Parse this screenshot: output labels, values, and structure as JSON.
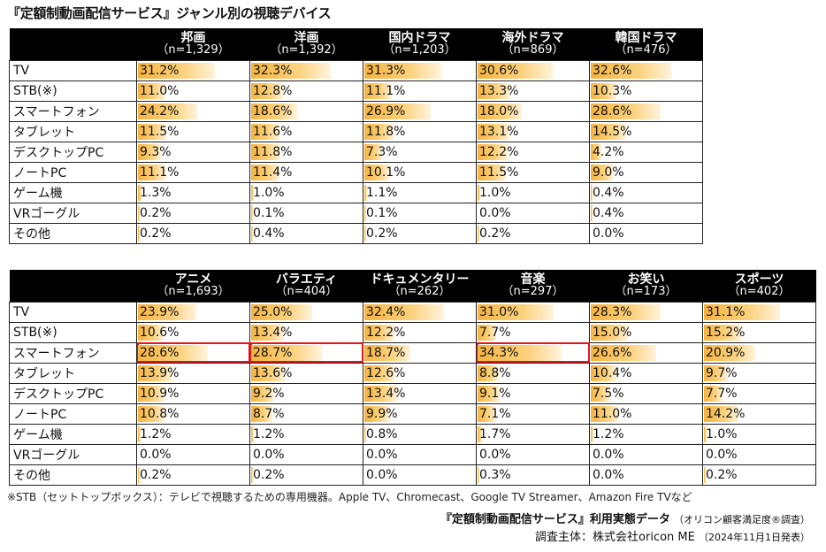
{
  "title": "『定額制動画配信サービス』ジャンル別の視聴デバイス",
  "chart_data": [
    {
      "type": "table",
      "columns": [
        {
          "name": "邦画",
          "n": "（n=1,329）"
        },
        {
          "name": "洋画",
          "n": "（n=1,392）"
        },
        {
          "name": "国内ドラマ",
          "n": "（n=1,203）"
        },
        {
          "name": "海外ドラマ",
          "n": "（n=869）"
        },
        {
          "name": "韓国ドラマ",
          "n": "（n=476）"
        }
      ],
      "rows": [
        {
          "label": "TV",
          "values": [
            31.2,
            32.3,
            31.3,
            30.6,
            32.6
          ],
          "labels": [
            "31.2%",
            "32.3%",
            "31.3%",
            "30.6%",
            "32.6%"
          ]
        },
        {
          "label": "STB(※)",
          "values": [
            11.0,
            12.8,
            11.1,
            13.3,
            10.3
          ],
          "labels": [
            "11.0%",
            "12.8%",
            "11.1%",
            "13.3%",
            "10.3%"
          ]
        },
        {
          "label": "スマートフォン",
          "values": [
            24.2,
            18.6,
            26.9,
            18.0,
            28.6
          ],
          "labels": [
            "24.2%",
            "18.6%",
            "26.9%",
            "18.0%",
            "28.6%"
          ]
        },
        {
          "label": "タブレット",
          "values": [
            11.5,
            11.6,
            11.8,
            13.1,
            14.5
          ],
          "labels": [
            "11.5%",
            "11.6%",
            "11.8%",
            "13.1%",
            "14.5%"
          ]
        },
        {
          "label": "デスクトップPC",
          "values": [
            9.3,
            11.8,
            7.3,
            12.2,
            4.2
          ],
          "labels": [
            "9.3%",
            "11.8%",
            "7.3%",
            "12.2%",
            "4.2%"
          ]
        },
        {
          "label": "ノートPC",
          "values": [
            11.1,
            11.4,
            10.1,
            11.5,
            9.0
          ],
          "labels": [
            "11.1%",
            "11.4%",
            "10.1%",
            "11.5%",
            "9.0%"
          ]
        },
        {
          "label": "ゲーム機",
          "values": [
            1.3,
            1.0,
            1.1,
            1.0,
            0.4
          ],
          "labels": [
            "1.3%",
            "1.0%",
            "1.1%",
            "1.0%",
            "0.4%"
          ]
        },
        {
          "label": "VRゴーグル",
          "values": [
            0.2,
            0.1,
            0.1,
            0.0,
            0.4
          ],
          "labels": [
            "0.2%",
            "0.1%",
            "0.1%",
            "0.0%",
            "0.4%"
          ]
        },
        {
          "label": "その他",
          "values": [
            0.2,
            0.4,
            0.2,
            0.2,
            0.0
          ],
          "labels": [
            "0.2%",
            "0.4%",
            "0.2%",
            "0.2%",
            "0.0%"
          ]
        }
      ],
      "highlighted": []
    },
    {
      "type": "table",
      "columns": [
        {
          "name": "アニメ",
          "n": "（n=1,693）"
        },
        {
          "name": "バラエティ",
          "n": "（n=404）"
        },
        {
          "name": "ドキュメンタリー",
          "n": "（n=262）"
        },
        {
          "name": "音楽",
          "n": "（n=297）"
        },
        {
          "name": "お笑い",
          "n": "（n=173）"
        },
        {
          "name": "スポーツ",
          "n": "（n=402）"
        }
      ],
      "rows": [
        {
          "label": "TV",
          "values": [
            23.9,
            25.0,
            32.4,
            31.0,
            28.3,
            31.1
          ],
          "labels": [
            "23.9%",
            "25.0%",
            "32.4%",
            "31.0%",
            "28.3%",
            "31.1%"
          ]
        },
        {
          "label": "STB(※)",
          "values": [
            10.6,
            13.4,
            12.2,
            7.7,
            15.0,
            15.2
          ],
          "labels": [
            "10.6%",
            "13.4%",
            "12.2%",
            "7.7%",
            "15.0%",
            "15.2%"
          ]
        },
        {
          "label": "スマートフォン",
          "values": [
            28.6,
            28.7,
            18.7,
            34.3,
            26.6,
            20.9
          ],
          "labels": [
            "28.6%",
            "28.7%",
            "18.7%",
            "34.3%",
            "26.6%",
            "20.9%"
          ]
        },
        {
          "label": "タブレット",
          "values": [
            13.9,
            13.6,
            12.6,
            8.8,
            10.4,
            9.7
          ],
          "labels": [
            "13.9%",
            "13.6%",
            "12.6%",
            "8.8%",
            "10.4%",
            "9.7%"
          ]
        },
        {
          "label": "デスクトップPC",
          "values": [
            10.9,
            9.2,
            13.4,
            9.1,
            7.5,
            7.7
          ],
          "labels": [
            "10.9%",
            "9.2%",
            "13.4%",
            "9.1%",
            "7.5%",
            "7.7%"
          ]
        },
        {
          "label": "ノートPC",
          "values": [
            10.8,
            8.7,
            9.9,
            7.1,
            11.0,
            14.2
          ],
          "labels": [
            "10.8%",
            "8.7%",
            "9.9%",
            "7.1%",
            "11.0%",
            "14.2%"
          ]
        },
        {
          "label": "ゲーム機",
          "values": [
            1.2,
            1.2,
            0.8,
            1.7,
            1.2,
            1.0
          ],
          "labels": [
            "1.2%",
            "1.2%",
            "0.8%",
            "1.7%",
            "1.2%",
            "1.0%"
          ]
        },
        {
          "label": "VRゴーグル",
          "values": [
            0.0,
            0.0,
            0.0,
            0.0,
            0.0,
            0.0
          ],
          "labels": [
            "0.0%",
            "0.0%",
            "0.0%",
            "0.0%",
            "0.0%",
            "0.0%"
          ]
        },
        {
          "label": "その他",
          "values": [
            0.2,
            0.2,
            0.0,
            0.3,
            0.0,
            0.2
          ],
          "labels": [
            "0.2%",
            "0.2%",
            "0.0%",
            "0.3%",
            "0.0%",
            "0.2%"
          ]
        }
      ],
      "highlighted": [
        [
          2,
          0
        ],
        [
          2,
          1
        ],
        [
          2,
          3
        ]
      ]
    }
  ],
  "footnote": "※STB（セットトップボックス）：テレビで視聴するための専用機器。Apple TV、Chromecast、Google TV Streamer、Amazon Fire TVなど",
  "source": {
    "title": "『定額制動画配信サービス』利用実態データ",
    "subtitle": "（オリコン顧客満足度®調査）",
    "org": "調査主体：株式会社oricon ME",
    "date": "（2024年11月1日発表）"
  },
  "colors": {
    "bar": "#f5b341",
    "highlight": "#e3141b",
    "header": "#000000"
  }
}
